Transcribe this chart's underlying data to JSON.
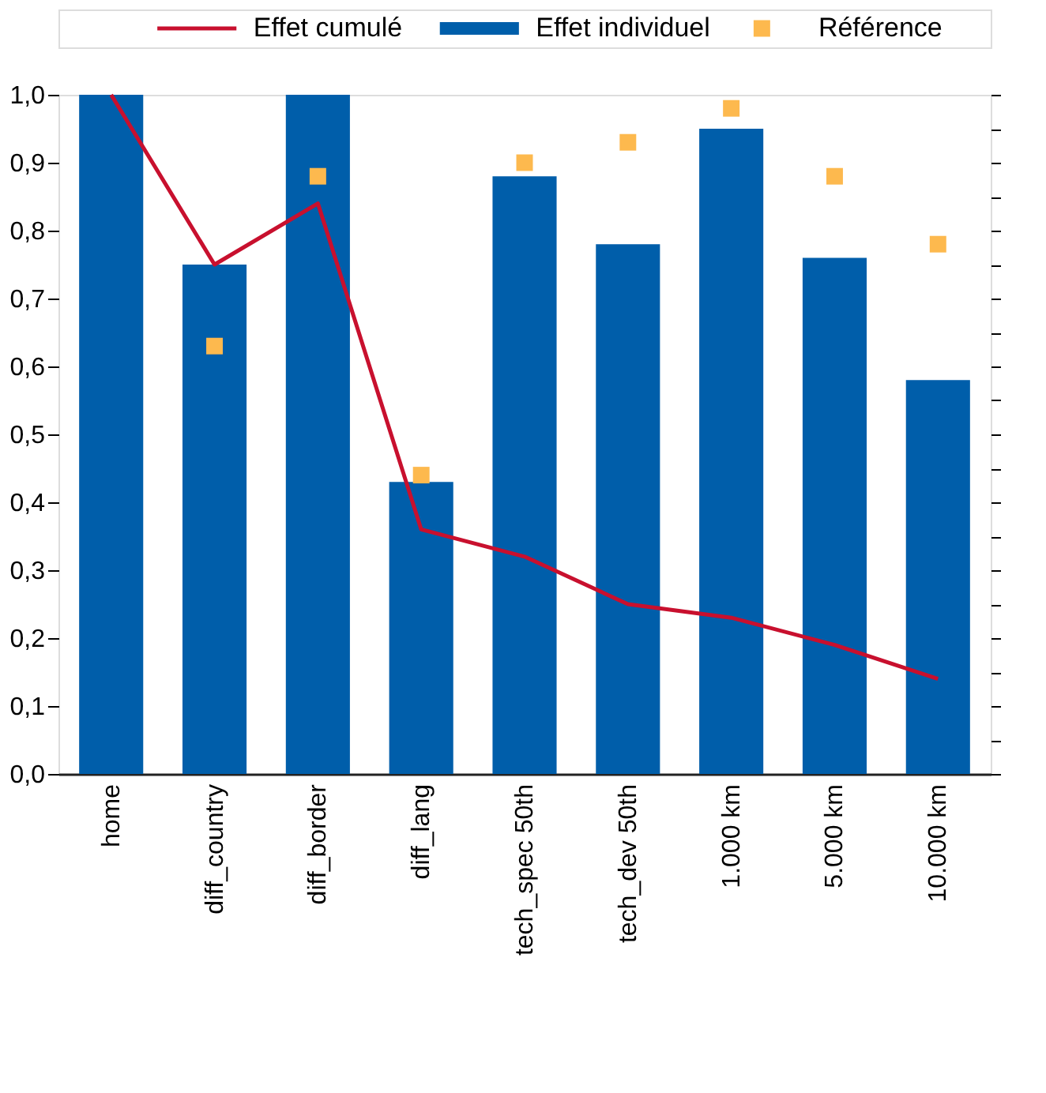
{
  "chart_data": {
    "type": "bar",
    "categories": [
      "home",
      "diff_country",
      "diff_border",
      "diff_lang",
      "tech_spec 50th",
      "tech_dev 50th",
      "1.000 km",
      "5.000 km",
      "10.000 km"
    ],
    "series": [
      {
        "name": "Effet cumulé",
        "type": "line",
        "color": "#c8102e",
        "values": [
          1.0,
          0.75,
          0.84,
          0.36,
          0.32,
          0.25,
          0.23,
          0.19,
          0.14
        ]
      },
      {
        "name": "Effet individuel",
        "color": "#005eaa",
        "values": [
          1.0,
          0.75,
          1.0,
          0.43,
          0.88,
          0.78,
          0.95,
          0.76,
          0.58
        ]
      },
      {
        "name": "Référence",
        "type": "scatter",
        "marker": "square",
        "color": "#fdb94e",
        "values": [
          null,
          0.63,
          0.88,
          0.44,
          0.9,
          0.93,
          0.98,
          0.88,
          0.78
        ]
      }
    ],
    "ylim": [
      0,
      1.0
    ],
    "yticks": [
      {
        "value": 0,
        "label": "0,0"
      },
      {
        "value": 0.05,
        "label": null
      },
      {
        "value": 0.1,
        "label": "0,1"
      },
      {
        "value": 0.15,
        "label": null
      },
      {
        "value": 0.2,
        "label": "0,2"
      },
      {
        "value": 0.25,
        "label": null
      },
      {
        "value": 0.3,
        "label": "0,3"
      },
      {
        "value": 0.35,
        "label": null
      },
      {
        "value": 0.4,
        "label": "0,4"
      },
      {
        "value": 0.45,
        "label": null
      },
      {
        "value": 0.5,
        "label": "0,5"
      },
      {
        "value": 0.55,
        "label": null
      },
      {
        "value": 0.6,
        "label": "0,6"
      },
      {
        "value": 0.65,
        "label": null
      },
      {
        "value": 0.7,
        "label": "0,7"
      },
      {
        "value": 0.75,
        "label": null
      },
      {
        "value": 0.8,
        "label": "0,8"
      },
      {
        "value": 0.85,
        "label": null
      },
      {
        "value": 0.9,
        "label": "0,9"
      },
      {
        "value": 0.95,
        "label": null
      },
      {
        "value": 1.0,
        "label": "1,0"
      }
    ],
    "grid": false,
    "legend": "top"
  }
}
